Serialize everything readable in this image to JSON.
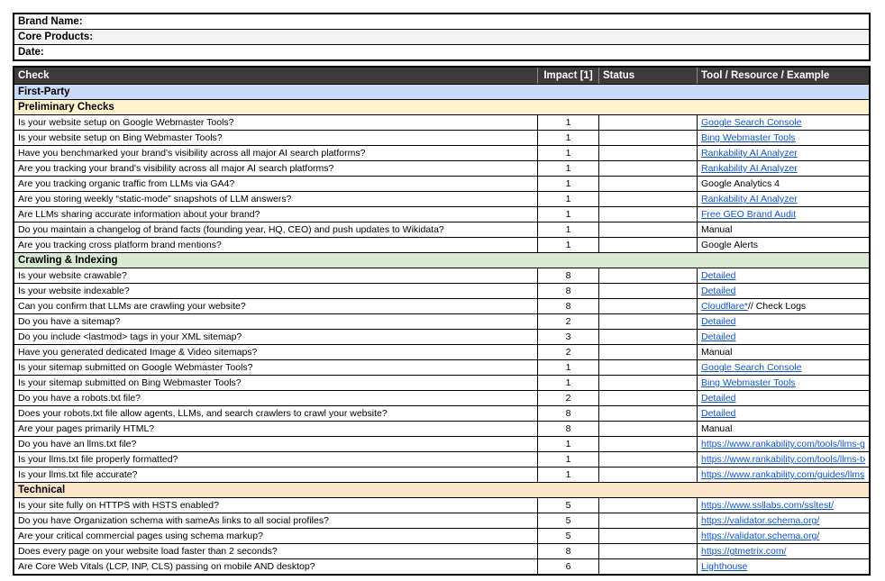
{
  "colors": {
    "header_bg": "#3b3b3b",
    "header_text": "#ffffff",
    "link": "#1155cc",
    "border": "#000000",
    "group_first_party_bg": "#c9daf8",
    "section_preliminary_bg": "#fff2cc",
    "section_crawling_bg": "#d9ead3",
    "section_technical_bg": "#fce5cd",
    "info_alt_bg": "#f3f3f3"
  },
  "info_rows": [
    {
      "label": "Brand Name:",
      "bg": "#ffffff"
    },
    {
      "label": "Core Products:",
      "bg": "#f3f3f3"
    },
    {
      "label": "Date:",
      "bg": "#ffffff"
    }
  ],
  "columns": {
    "check": "Check",
    "impact": "Impact [1]",
    "status": "Status",
    "tool": "Tool / Resource / Example"
  },
  "sections": [
    {
      "label": "First-Party",
      "bg": "#c9daf8",
      "rows": []
    },
    {
      "label": "Preliminary Checks",
      "bg": "#fff2cc",
      "rows": [
        {
          "check": "Is your website setup on Google Webmaster Tools?",
          "impact": "1",
          "status": "",
          "tool_link": "Google Search Console",
          "tool_plain": ""
        },
        {
          "check": "Is your website setup on Bing Webmaster Tools?",
          "impact": "1",
          "status": "",
          "tool_link": "Bing Webmaster Tools",
          "tool_plain": ""
        },
        {
          "check": "Have you benchmarked your brand's visibility across all major AI search platforms?",
          "impact": "1",
          "status": "",
          "tool_link": "Rankability AI Analyzer",
          "tool_plain": ""
        },
        {
          "check": "Are you tracking your brand's visibility across all major AI search platforms?",
          "impact": "1",
          "status": "",
          "tool_link": "Rankability AI Analyzer",
          "tool_plain": ""
        },
        {
          "check": "Are you tracking organic traffic from LLMs via GA4?",
          "impact": "1",
          "status": "",
          "tool_link": "",
          "tool_plain": "Google Analytics 4"
        },
        {
          "check": "Are you storing weekly “static-mode” snapshots of LLM answers?",
          "impact": "1",
          "status": "",
          "tool_link": "Rankability AI Analyzer",
          "tool_plain": ""
        },
        {
          "check": "Are LLMs sharing accurate information about your brand?",
          "impact": "1",
          "status": "",
          "tool_link": "Free GEO Brand Audit",
          "tool_plain": ""
        },
        {
          "check": "Do you maintain a changelog of brand facts (founding year, HQ, CEO) and push updates to Wikidata?",
          "impact": "1",
          "status": "",
          "tool_link": "",
          "tool_plain": "Manual"
        },
        {
          "check": "Are you tracking cross platform brand mentions?",
          "impact": "1",
          "status": "",
          "tool_link": "",
          "tool_plain": "Google Alerts"
        }
      ]
    },
    {
      "label": "Crawling & Indexing",
      "bg": "#d9ead3",
      "rows": [
        {
          "check": "Is your website crawable?",
          "impact": "8",
          "status": "",
          "tool_link": "Detailed",
          "tool_plain": ""
        },
        {
          "check": "Is your website indexable?",
          "impact": "8",
          "status": "",
          "tool_link": "Detailed",
          "tool_plain": ""
        },
        {
          "check": "Can you confirm that LLMs are crawling your website?",
          "impact": "8",
          "status": "",
          "tool_link": "Cloudflare*",
          "tool_plain": " // Check Logs"
        },
        {
          "check": "Do you have a sitemap?",
          "impact": "2",
          "status": "",
          "tool_link": "Detailed",
          "tool_plain": ""
        },
        {
          "check": "Do you include <lastmod> tags in your XML sitemap?",
          "impact": "3",
          "status": "",
          "tool_link": "Detailed",
          "tool_plain": ""
        },
        {
          "check": "Have you generated dedicated Image & Video sitemaps?",
          "impact": "2",
          "status": "",
          "tool_link": "",
          "tool_plain": "Manual"
        },
        {
          "check": "Is your sitemap submitted on Google Webmaster Tools?",
          "impact": "1",
          "status": "",
          "tool_link": "Google Search Console",
          "tool_plain": ""
        },
        {
          "check": "Is your sitemap submitted on Bing Webmaster Tools?",
          "impact": "1",
          "status": "",
          "tool_link": "Bing Webmaster Tools",
          "tool_plain": ""
        },
        {
          "check": "Do you have a robots.txt file?",
          "impact": "2",
          "status": "",
          "tool_link": "Detailed",
          "tool_plain": ""
        },
        {
          "check": "Does your robots.txt file allow agents, LLMs, and search crawlers to crawl your website?",
          "impact": "8",
          "status": "",
          "tool_link": "Detailed",
          "tool_plain": ""
        },
        {
          "check": "Are your pages primarily HTML?",
          "impact": "8",
          "status": "",
          "tool_link": "",
          "tool_plain": "Manual"
        },
        {
          "check": "Do you have an llms.txt file?",
          "impact": "1",
          "status": "",
          "tool_link": "https://www.rankability.com/tools/llms-ge",
          "tool_plain": ""
        },
        {
          "check": "Is your llms.txt file properly formatted?",
          "impact": "1",
          "status": "",
          "tool_link": "https://www.rankability.com/tools/llms-tx",
          "tool_plain": ""
        },
        {
          "check": "Is your llms.txt file accurate?",
          "impact": "1",
          "status": "",
          "tool_link": "https://www.rankability.com/guides/llms",
          "tool_plain": ""
        }
      ]
    },
    {
      "label": "Technical",
      "bg": "#fce5cd",
      "rows": [
        {
          "check": "Is your site fully on HTTPS with HSTS enabled?",
          "impact": "5",
          "status": "",
          "tool_link": "https://www.ssllabs.com/ssltest/",
          "tool_plain": ""
        },
        {
          "check": "Do you have Organization schema with sameAs links to all social profiles?",
          "impact": "5",
          "status": "",
          "tool_link": "https://validator.schema.org/",
          "tool_plain": ""
        },
        {
          "check": "Are your critical commercial pages using schema markup?",
          "impact": "5",
          "status": "",
          "tool_link": "https://validator.schema.org/",
          "tool_plain": ""
        },
        {
          "check": "Does every page on your website load faster than 2 seconds?",
          "impact": "8",
          "status": "",
          "tool_link": "https://gtmetrix.com/",
          "tool_plain": ""
        },
        {
          "check": "Are Core Web Vitals (LCP, INP, CLS) passing on mobile AND desktop?",
          "impact": "6",
          "status": "",
          "tool_link": "Lighthouse",
          "tool_plain": ""
        }
      ]
    }
  ]
}
